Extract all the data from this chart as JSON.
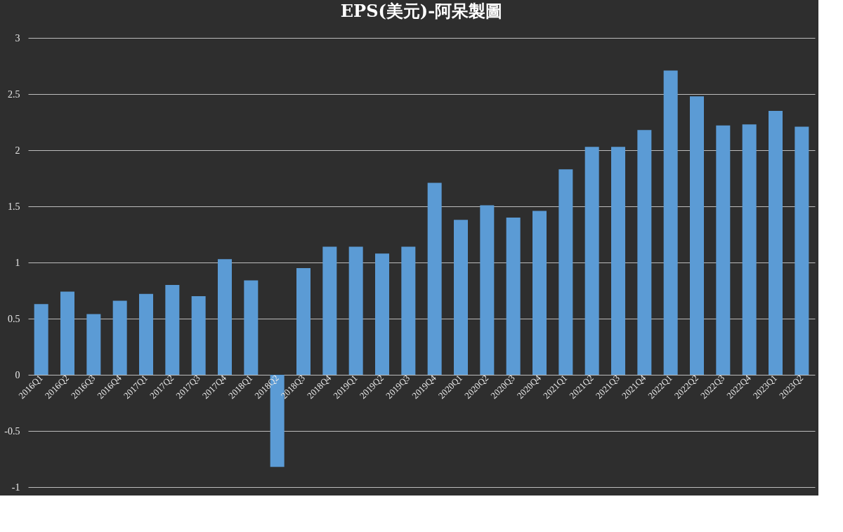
{
  "chart_data": {
    "type": "bar",
    "title": "EPS(美元)-阿呆製圖",
    "categories": [
      "2016Q1",
      "2016Q2",
      "2016Q3",
      "2016Q4",
      "2017Q1",
      "2017Q2",
      "2017Q3",
      "2017Q4",
      "2018Q1",
      "2018Q2",
      "2018Q3",
      "2018Q4",
      "2019Q1",
      "2019Q2",
      "2019Q3",
      "2019Q4",
      "2020Q1",
      "2020Q2",
      "2020Q3",
      "2020Q4",
      "2021Q1",
      "2021Q2",
      "2021Q3",
      "2021Q4",
      "2022Q1",
      "2022Q2",
      "2022Q3",
      "2022Q4",
      "2023Q1",
      "2023Q2"
    ],
    "values": [
      0.63,
      0.74,
      0.54,
      0.66,
      0.72,
      0.8,
      0.7,
      1.03,
      0.84,
      -0.82,
      0.95,
      1.14,
      1.14,
      1.08,
      1.14,
      1.71,
      1.38,
      1.51,
      1.4,
      1.46,
      1.83,
      2.03,
      2.03,
      2.18,
      2.71,
      2.48,
      2.22,
      2.23,
      2.35,
      2.21
    ],
    "color": "#5b9bd5",
    "ylim": [
      -1,
      3
    ],
    "yticks": [
      -1,
      -0.5,
      0,
      0.5,
      1,
      1.5,
      2,
      2.5,
      3
    ],
    "grid": "y"
  }
}
